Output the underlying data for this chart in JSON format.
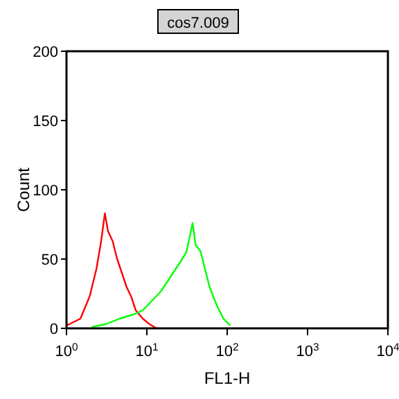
{
  "chart_data": {
    "type": "line",
    "title": "cos7.009",
    "xlabel": "FL1-H",
    "ylabel": "Count",
    "log": "x",
    "xlim": [
      1,
      10000
    ],
    "xticks": [
      {
        "value": 1,
        "label": "10$^{0}$"
      },
      {
        "value": 10,
        "label": "10$^{1}$"
      },
      {
        "value": 100,
        "label": "10$^{2}$"
      },
      {
        "value": 1000,
        "label": "10$^{3}$"
      },
      {
        "value": 10000,
        "label": "10$^{4}$"
      }
    ],
    "ylim": [
      0,
      200
    ],
    "yticks": [
      0,
      50,
      100,
      150,
      200
    ],
    "grid": false,
    "series": [
      {
        "color": "#ff0000",
        "x": [
          1.0,
          1.49,
          1.94,
          2.36,
          2.7,
          3.0,
          3.29,
          3.75,
          4.27,
          4.89,
          5.58,
          6.37,
          7.28,
          8.89,
          10.8,
          13.2
        ],
        "values": [
          2,
          7,
          23,
          43,
          63,
          83,
          70,
          63,
          50,
          40,
          30,
          23,
          13,
          7,
          3,
          0
        ]
      },
      {
        "color": "#00ff00",
        "x": [
          2.07,
          3.08,
          4.58,
          6.81,
          8.88,
          11.6,
          15.1,
          19.6,
          25.5,
          31.1,
          37.1,
          40.5,
          46.3,
          52.8,
          60.2,
          73.7,
          89.8,
          109
        ],
        "values": [
          1,
          3,
          7,
          10,
          13,
          20,
          27,
          37,
          47,
          55,
          76,
          60,
          56,
          43,
          30,
          17,
          7,
          2
        ]
      }
    ]
  }
}
